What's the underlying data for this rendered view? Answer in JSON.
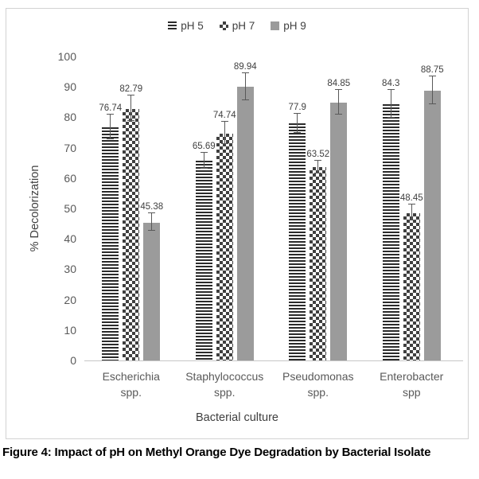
{
  "caption": "Figure 4: Impact of pH on Methyl Orange Dye Degradation by Bacterial Isolate",
  "chart_data": {
    "type": "bar",
    "title": "",
    "xlabel": "Bacterial culture",
    "ylabel": "% Decolorization",
    "ylim": [
      0,
      100
    ],
    "ytick_step": 10,
    "yticks": [
      0,
      10,
      20,
      30,
      40,
      50,
      60,
      70,
      80,
      90,
      100
    ],
    "grid": false,
    "legend_position": "top-center",
    "categories": [
      "Escherichia spp.",
      "Staphylococcus spp.",
      "Pseudomonas spp.",
      "Enterobacter spp"
    ],
    "category_lines": [
      [
        "Escherichia",
        "spp."
      ],
      [
        "Staphylococcus",
        "spp."
      ],
      [
        "Pseudomonas",
        "spp."
      ],
      [
        "Enterobacter",
        "spp"
      ]
    ],
    "series": [
      {
        "name": "pH 5",
        "pattern": "h-stripes",
        "values": [
          76.74,
          65.69,
          77.9,
          84.3
        ],
        "value_labels": [
          "76.74",
          "65.69",
          "77.9",
          "84.3"
        ],
        "errors": [
          3.9,
          2.5,
          3.0,
          4.5
        ]
      },
      {
        "name": "pH 7",
        "pattern": "checker",
        "values": [
          82.79,
          74.74,
          63.52,
          48.45
        ],
        "value_labels": [
          "82.79",
          "74.74",
          "63.52",
          "48.45"
        ],
        "errors": [
          4.1,
          3.5,
          2.0,
          2.5
        ]
      },
      {
        "name": "pH 9",
        "pattern": "solid",
        "values": [
          45.38,
          89.94,
          84.85,
          88.75
        ],
        "value_labels": [
          "45.38",
          "89.94",
          "84.85",
          "88.75"
        ],
        "errors": [
          2.8,
          4.4,
          4.0,
          4.5
        ]
      }
    ],
    "error_bars": true
  },
  "colors": {
    "solid_bar": "#9b9b9b",
    "pattern_dark": "#2b2b2b",
    "checker_dark": "#3f3f3f",
    "error_bar": "#595959",
    "axis_line": "#c6c6c6",
    "tick_text": "#595959",
    "value_label_text": "#3f3f3f",
    "legend_text": "#404040",
    "box_border": "#d2d2d2",
    "caption_text": "#000000"
  }
}
